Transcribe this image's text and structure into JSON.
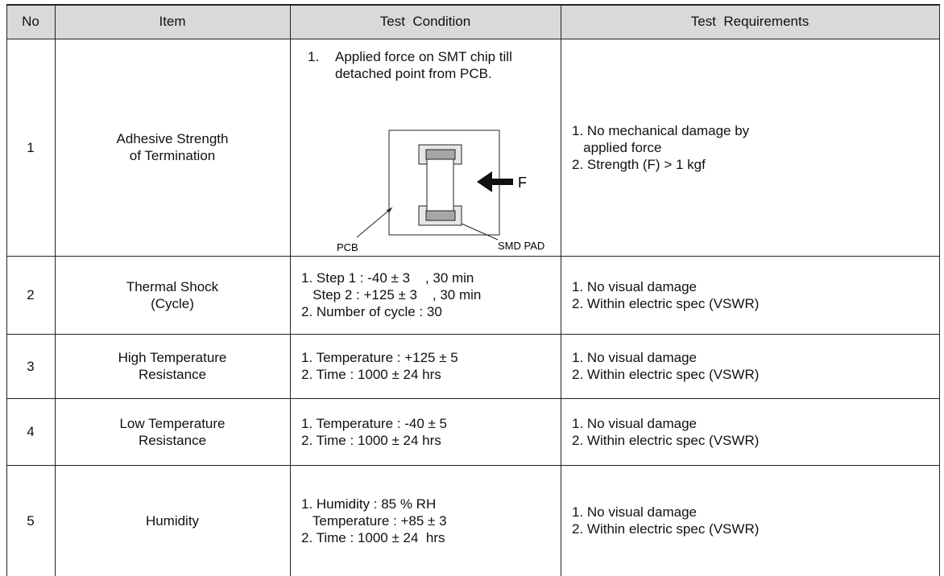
{
  "table": {
    "header": [
      "No",
      "Item",
      "Test  Condition",
      "Test  Requirements"
    ],
    "rows": [
      {
        "no": "1",
        "item": [
          "Adhesive Strength",
          "of Termination"
        ],
        "condition_marker": "1.",
        "condition": [
          "Applied force on SMT chip till",
          "detached point from PCB."
        ],
        "requirements": [
          "1. No mechanical damage by",
          "   applied force",
          "2. Strength (F) > 1 kgf"
        ]
      },
      {
        "no": "2",
        "item": [
          "Thermal Shock",
          "(Cycle)"
        ],
        "condition": [
          "1. Step 1 : -40 ± 3    , 30 min",
          "   Step 2 : +125 ± 3    , 30 min",
          "2. Number of cycle : 30"
        ],
        "requirements": [
          "1. No visual damage",
          "2. Within electric spec (VSWR)"
        ]
      },
      {
        "no": "3",
        "item": [
          "High Temperature",
          "Resistance"
        ],
        "condition": [
          "1. Temperature : +125 ± 5",
          "2. Time : 1000 ± 24 hrs"
        ],
        "requirements": [
          "1. No visual damage",
          "2. Within electric spec (VSWR)"
        ]
      },
      {
        "no": "4",
        "item": [
          "Low Temperature",
          "Resistance"
        ],
        "condition": [
          "1. Temperature : -40 ± 5",
          "2. Time : 1000 ± 24 hrs"
        ],
        "requirements": [
          "1. No visual damage",
          "2. Within electric spec (VSWR)"
        ]
      },
      {
        "no": "5",
        "item": [
          "Humidity"
        ],
        "condition": [
          "1. Humidity : 85 % RH",
          "   Temperature : +85 ± 3",
          "2. Time : 1000 ± 24  hrs"
        ],
        "requirements": [
          "1. No visual damage",
          "2. Within electric spec (VSWR)"
        ]
      }
    ],
    "diagram": {
      "force_label": "F",
      "pcb_label": "PCB",
      "pad_label": "SMD PAD"
    }
  }
}
